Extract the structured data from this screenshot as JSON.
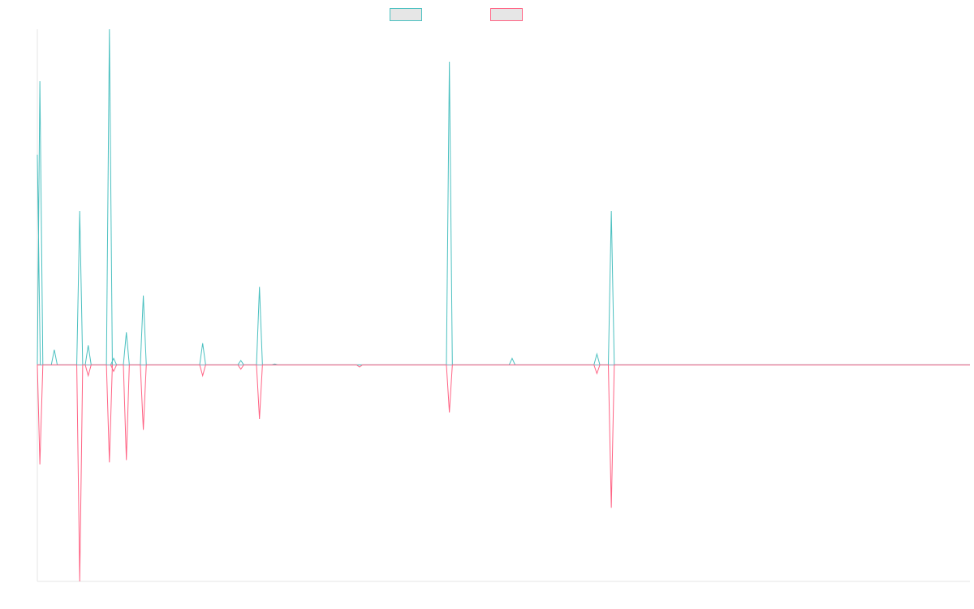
{
  "colors": {
    "series_a": "#4bc0c0",
    "series_b": "#ff6384",
    "zero_line": "#8a9db5",
    "axis": "#e5e5e5",
    "legend_fill": "#e6e6e6"
  },
  "legend": {
    "items": [
      {
        "label": "",
        "color": "#4bc0c0"
      },
      {
        "label": "",
        "color": "#ff6384"
      }
    ]
  },
  "chart_data": {
    "type": "line",
    "grid": false,
    "legend_position": "top-center",
    "x_count": 111,
    "ylim": [
      -100,
      155
    ],
    "series": [
      {
        "color": "#4bc0c0",
        "points": [
          [
            0,
            97
          ],
          [
            0.3,
            131
          ],
          [
            2,
            7
          ],
          [
            5,
            71
          ],
          [
            6,
            9
          ],
          [
            8.5,
            155
          ],
          [
            9,
            3
          ],
          [
            10.5,
            15
          ],
          [
            12.5,
            32
          ],
          [
            19.5,
            10
          ],
          [
            24,
            2
          ],
          [
            26.2,
            36
          ],
          [
            28,
            0.4
          ],
          [
            48.6,
            140
          ],
          [
            56,
            3
          ],
          [
            66,
            5
          ],
          [
            67.7,
            71
          ]
        ]
      },
      {
        "color": "#ff6384",
        "points": [
          [
            0,
            0
          ],
          [
            0.3,
            -46
          ],
          [
            5,
            -100
          ],
          [
            6,
            -5
          ],
          [
            8.5,
            -45
          ],
          [
            9,
            -3
          ],
          [
            10.5,
            -44
          ],
          [
            12.5,
            -30
          ],
          [
            19.5,
            -5
          ],
          [
            24,
            -2
          ],
          [
            26.2,
            -25
          ],
          [
            38,
            -1
          ],
          [
            48.6,
            -22
          ],
          [
            66,
            -4
          ],
          [
            67.7,
            -66
          ]
        ]
      }
    ]
  }
}
